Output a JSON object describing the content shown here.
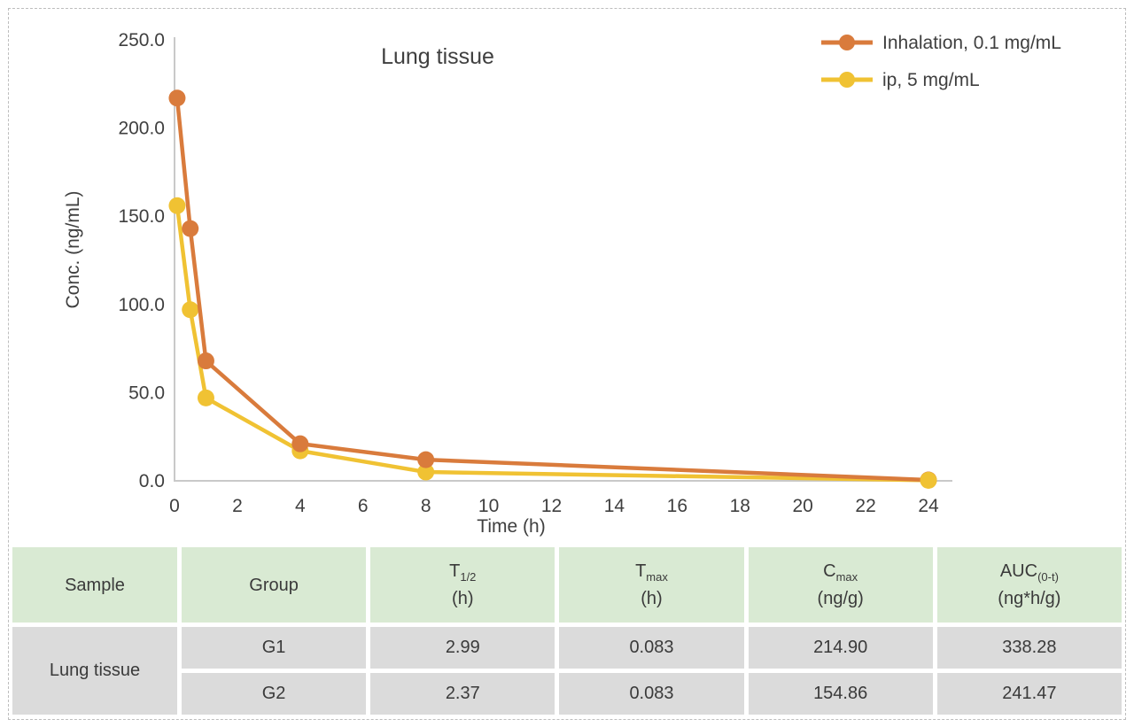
{
  "chart_data": {
    "type": "line",
    "title": "Lung tissue",
    "xlabel": "Time (h)",
    "ylabel": "Conc. (ng/mL)",
    "x": [
      0.083,
      0.5,
      1,
      4,
      8,
      24
    ],
    "series": [
      {
        "name": "Inhalation, 0.1 mg/mL",
        "color": "#d97b3c",
        "values": [
          217,
          143,
          68,
          21,
          12,
          0.5
        ]
      },
      {
        "name": "ip, 5 mg/mL",
        "color": "#f0c233",
        "values": [
          156,
          97,
          47,
          17,
          5,
          0.3
        ]
      }
    ],
    "xlim": [
      0,
      24
    ],
    "ylim": [
      0,
      250
    ],
    "x_ticks": [
      0,
      2,
      4,
      6,
      8,
      10,
      12,
      14,
      16,
      18,
      20,
      22,
      24
    ],
    "y_ticks": [
      {
        "value": 250,
        "label": "250.0"
      },
      {
        "value": 200,
        "label": "200.0"
      },
      {
        "value": 150,
        "label": "150.0"
      },
      {
        "value": 100,
        "label": "100.0"
      },
      {
        "value": 50,
        "label": "50.0"
      },
      {
        "value": 0,
        "label": "0.0"
      }
    ],
    "grid": false,
    "legend_position": "top-right",
    "axis_color": "#c9c9c9"
  },
  "table": {
    "columns": [
      {
        "label": "Sample",
        "sub": "",
        "unit": ""
      },
      {
        "label": "Group",
        "sub": "",
        "unit": ""
      },
      {
        "label": "T",
        "sub": "1/2",
        "unit": "(h)"
      },
      {
        "label": "T",
        "sub": "max",
        "unit": "(h)"
      },
      {
        "label": "C",
        "sub": "max",
        "unit": "(ng/g)"
      },
      {
        "label": "AUC",
        "sub": "(0-t)",
        "unit": "(ng*h/g)"
      }
    ],
    "sample": "Lung tissue",
    "rows": [
      {
        "group": "G1",
        "t_half": "2.99",
        "t_max": "0.083",
        "c_max": "214.90",
        "auc": "338.28"
      },
      {
        "group": "G2",
        "t_half": "2.37",
        "t_max": "0.083",
        "c_max": "154.86",
        "auc": "241.47"
      }
    ],
    "colors": {
      "header_bg": "#d9ead3",
      "row_bg": "#dbdbdb"
    }
  }
}
